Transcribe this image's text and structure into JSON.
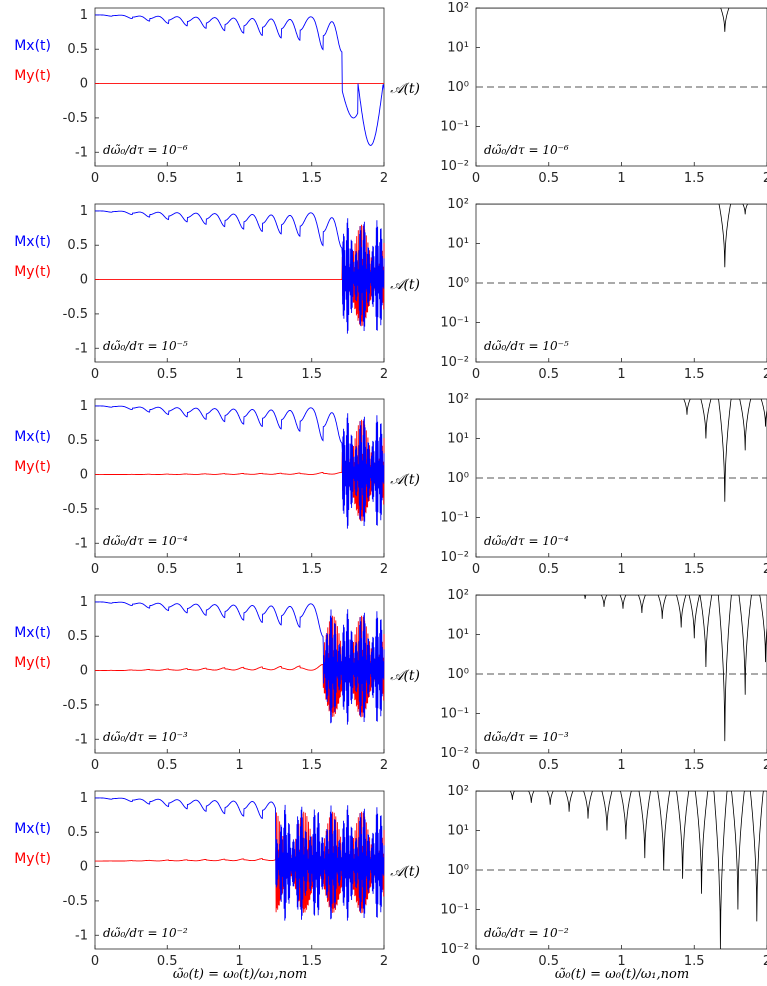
{
  "figure": {
    "left_xlabel": "ω̃₀(t) = ω₀(t)/ω₁,nom",
    "right_xlabel": "ω̃₀(t) = ω₀(t)/ω₁,nom",
    "left_legend": [
      {
        "name": "Mx(t)",
        "color": "#0000ff"
      },
      {
        "name": "My(t)",
        "color": "#ff0000"
      }
    ],
    "right_ylabel": "𝒜(t)",
    "colors": {
      "mx": "#0000ff",
      "my": "#ff0000",
      "amp": "#000000",
      "ref": "#555555"
    }
  },
  "chart_data": [
    {
      "type": "line",
      "panel": "left",
      "row": 1,
      "annotation": "dω̃₀/dτ = 10⁻⁶",
      "xlim": [
        0,
        2
      ],
      "ylim": [
        -1.2,
        1.1
      ],
      "xticks": [
        "0",
        "0.5",
        "1",
        "1.5",
        "2"
      ],
      "yticks": [
        "1",
        "0.5",
        "0",
        "-0.5",
        "-1"
      ],
      "series": [
        {
          "name": "Mx(t)",
          "x_switch": 1.71,
          "my_base": 0.0,
          "my_peaks": 0.0,
          "chaos": 0.0
        }
      ]
    },
    {
      "type": "line",
      "panel": "right",
      "row": 1,
      "annotation": "dω̃₀/dτ = 10⁻⁶",
      "xlim": [
        0,
        2
      ],
      "ylim_log": [
        0.01,
        100
      ],
      "reference": 1,
      "xticks": [
        "0",
        "0.5",
        "1",
        "1.5",
        "2"
      ],
      "yticks": [
        "10²",
        "10¹",
        "10⁰",
        "10⁻¹",
        "10⁻²"
      ],
      "dips": [
        {
          "x": 1.71,
          "min": 25
        }
      ]
    },
    {
      "type": "line",
      "panel": "left",
      "row": 2,
      "annotation": "dω̃₀/dτ = 10⁻⁵",
      "xlim": [
        0,
        2
      ],
      "ylim": [
        -1.2,
        1.1
      ],
      "xticks": [
        "0",
        "0.5",
        "1",
        "1.5",
        "2"
      ],
      "yticks": [
        "1",
        "0.5",
        "0",
        "-0.5",
        "-1"
      ],
      "series": [
        {
          "name": "Mx(t)",
          "x_switch": 1.71,
          "my_base": 0.0,
          "my_peaks": 0.0,
          "chaos": 1.0
        }
      ]
    },
    {
      "type": "line",
      "panel": "right",
      "row": 2,
      "annotation": "dω̃₀/dτ = 10⁻⁵",
      "xlim": [
        0,
        2
      ],
      "ylim_log": [
        0.01,
        100
      ],
      "reference": 1,
      "xticks": [
        "0",
        "0.5",
        "1",
        "1.5",
        "2"
      ],
      "yticks": [
        "10²",
        "10¹",
        "10⁰",
        "10⁻¹",
        "10⁻²"
      ],
      "dips": [
        {
          "x": 1.71,
          "min": 2.5
        },
        {
          "x": 1.85,
          "min": 55
        }
      ]
    },
    {
      "type": "line",
      "panel": "left",
      "row": 3,
      "annotation": "dω̃₀/dτ = 10⁻⁴",
      "xlim": [
        0,
        2
      ],
      "ylim": [
        -1.2,
        1.1
      ],
      "xticks": [
        "0",
        "0.5",
        "1",
        "1.5",
        "2"
      ],
      "yticks": [
        "1",
        "0.5",
        "0",
        "-0.5",
        "-1"
      ],
      "series": [
        {
          "name": "Mx(t)",
          "x_switch": 1.71,
          "my_base": 0.0,
          "my_peaks": 0.1,
          "chaos": 1.0
        }
      ]
    },
    {
      "type": "line",
      "panel": "right",
      "row": 3,
      "annotation": "dω̃₀/dτ = 10⁻⁴",
      "xlim": [
        0,
        2
      ],
      "ylim_log": [
        0.01,
        100
      ],
      "reference": 1,
      "xticks": [
        "0",
        "0.5",
        "1",
        "1.5",
        "2"
      ],
      "yticks": [
        "10²",
        "10¹",
        "10⁰",
        "10⁻¹",
        "10⁻²"
      ],
      "dips": [
        {
          "x": 1.45,
          "min": 40
        },
        {
          "x": 1.58,
          "min": 10
        },
        {
          "x": 1.71,
          "min": 0.25
        },
        {
          "x": 1.85,
          "min": 5
        },
        {
          "x": 1.99,
          "min": 20
        }
      ]
    },
    {
      "type": "line",
      "panel": "left",
      "row": 4,
      "annotation": "dω̃₀/dτ = 10⁻³",
      "xlim": [
        0,
        2
      ],
      "ylim": [
        -1.2,
        1.1
      ],
      "xticks": [
        "0",
        "0.5",
        "1",
        "1.5",
        "2"
      ],
      "yticks": [
        "1",
        "0.5",
        "0",
        "-0.5",
        "-1"
      ],
      "series": [
        {
          "name": "Mx(t)",
          "x_switch": 1.58,
          "my_base": 0.0,
          "my_peaks": 0.3,
          "chaos": 1.0
        }
      ]
    },
    {
      "type": "line",
      "panel": "right",
      "row": 4,
      "annotation": "dω̃₀/dτ = 10⁻³",
      "xlim": [
        0,
        2
      ],
      "ylim_log": [
        0.01,
        100
      ],
      "reference": 1,
      "xticks": [
        "0",
        "0.5",
        "1",
        "1.5",
        "2"
      ],
      "yticks": [
        "10²",
        "10¹",
        "10⁰",
        "10⁻¹",
        "10⁻²"
      ],
      "dips": [
        {
          "x": 0.75,
          "min": 80
        },
        {
          "x": 0.88,
          "min": 50
        },
        {
          "x": 1.01,
          "min": 45
        },
        {
          "x": 1.14,
          "min": 35
        },
        {
          "x": 1.28,
          "min": 25
        },
        {
          "x": 1.41,
          "min": 15
        },
        {
          "x": 1.5,
          "min": 8
        },
        {
          "x": 1.58,
          "min": 1.5
        },
        {
          "x": 1.71,
          "min": 0.02
        },
        {
          "x": 1.85,
          "min": 0.3
        },
        {
          "x": 1.99,
          "min": 2
        }
      ]
    },
    {
      "type": "line",
      "panel": "left",
      "row": 5,
      "annotation": "dω̃₀/dτ = 10⁻²",
      "xlim": [
        0,
        2
      ],
      "ylim": [
        -1.2,
        1.1
      ],
      "xticks": [
        "0",
        "0.5",
        "1",
        "1.5",
        "2"
      ],
      "yticks": [
        "1",
        "0.5",
        "0",
        "-0.5",
        "-1"
      ],
      "series": [
        {
          "name": "Mx(t)",
          "x_switch": 1.25,
          "my_base": 0.08,
          "my_peaks": 0.2,
          "chaos": 1.0
        }
      ]
    },
    {
      "type": "line",
      "panel": "right",
      "row": 5,
      "annotation": "dω̃₀/dτ = 10⁻²",
      "xlim": [
        0,
        2
      ],
      "ylim_log": [
        0.01,
        100
      ],
      "reference": 1,
      "xticks": [
        "0",
        "0.5",
        "1",
        "1.5",
        "2"
      ],
      "yticks": [
        "10²",
        "10¹",
        "10⁰",
        "10⁻¹",
        "10⁻²"
      ],
      "dips": [
        {
          "x": 0.25,
          "min": 60
        },
        {
          "x": 0.38,
          "min": 50
        },
        {
          "x": 0.51,
          "min": 45
        },
        {
          "x": 0.64,
          "min": 30
        },
        {
          "x": 0.77,
          "min": 20
        },
        {
          "x": 0.9,
          "min": 10
        },
        {
          "x": 1.03,
          "min": 6
        },
        {
          "x": 1.16,
          "min": 2
        },
        {
          "x": 1.29,
          "min": 1
        },
        {
          "x": 1.42,
          "min": 0.6
        },
        {
          "x": 1.55,
          "min": 0.25
        },
        {
          "x": 1.68,
          "min": 0.01
        },
        {
          "x": 1.8,
          "min": 0.1
        },
        {
          "x": 1.93,
          "min": 0.05
        }
      ]
    }
  ]
}
